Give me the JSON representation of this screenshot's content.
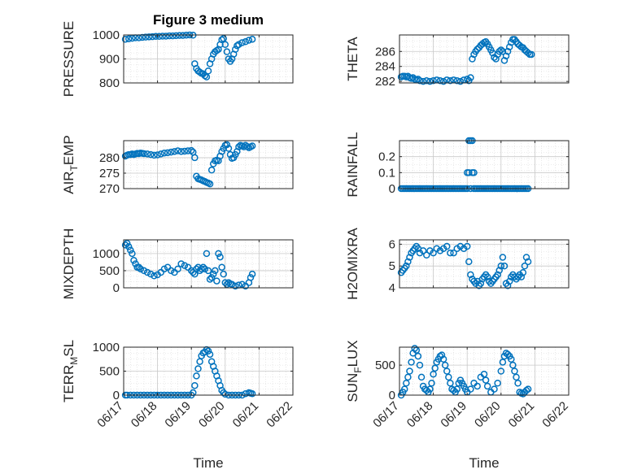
{
  "figure": {
    "title": "Figure 3 medium",
    "xlabel": "Time",
    "x_ticks": [
      "06/17",
      "06/18",
      "06/19",
      "06/20",
      "06/21",
      "06/22"
    ],
    "marker_color": "#0072BD"
  },
  "chart_data": [
    {
      "type": "scatter",
      "ylabel": "PRESSURE",
      "ylim": [
        800,
        1000
      ],
      "yticks": [
        800,
        900,
        1000
      ],
      "xlim": [
        0,
        5
      ],
      "grid": true,
      "x": [
        0.05,
        0.15,
        0.25,
        0.35,
        0.45,
        0.55,
        0.65,
        0.75,
        0.85,
        0.95,
        1.05,
        1.15,
        1.25,
        1.35,
        1.45,
        1.55,
        1.65,
        1.75,
        1.85,
        1.95,
        2.05,
        2.1,
        2.15,
        2.2,
        2.25,
        2.3,
        2.35,
        2.4,
        2.45,
        2.5,
        2.55,
        2.6,
        2.65,
        2.7,
        2.75,
        2.8,
        2.85,
        2.9,
        2.95,
        3.0,
        3.05,
        3.1,
        3.15,
        3.2,
        3.25,
        3.3,
        3.35,
        3.4,
        3.5,
        3.6,
        3.7,
        3.8
      ],
      "y": [
        982,
        984,
        986,
        988,
        988,
        990,
        991,
        992,
        993,
        994,
        994,
        995,
        995,
        996,
        996,
        997,
        998,
        998,
        999,
        1000,
        999,
        880,
        860,
        850,
        845,
        840,
        838,
        830,
        825,
        850,
        880,
        900,
        920,
        930,
        935,
        940,
        960,
        980,
        985,
        960,
        930,
        900,
        890,
        900,
        920,
        940,
        955,
        960,
        968,
        972,
        978,
        982
      ]
    },
    {
      "type": "scatter",
      "ylabel": "THETA",
      "ylim": [
        281.8,
        288.2
      ],
      "yticks": [
        282,
        284,
        286
      ],
      "xlim": [
        0,
        5
      ],
      "grid": true,
      "x": [
        0.05,
        0.1,
        0.15,
        0.2,
        0.25,
        0.3,
        0.35,
        0.4,
        0.45,
        0.5,
        0.55,
        0.6,
        0.7,
        0.8,
        0.9,
        1.0,
        1.1,
        1.2,
        1.3,
        1.4,
        1.5,
        1.6,
        1.7,
        1.8,
        1.9,
        2.0,
        2.05,
        2.1,
        2.15,
        2.2,
        2.25,
        2.3,
        2.35,
        2.4,
        2.45,
        2.5,
        2.55,
        2.6,
        2.65,
        2.7,
        2.75,
        2.8,
        2.85,
        2.9,
        2.95,
        3.0,
        3.05,
        3.1,
        3.15,
        3.2,
        3.25,
        3.3,
        3.35,
        3.4,
        3.45,
        3.5,
        3.55,
        3.6,
        3.65,
        3.7,
        3.75,
        3.8,
        3.85,
        3.9
      ],
      "y": [
        282.6,
        282.7,
        282.7,
        282.6,
        282.7,
        282.5,
        282.4,
        282.5,
        282.3,
        282.2,
        282.3,
        282.1,
        282.0,
        282.1,
        282.0,
        282.1,
        282.2,
        282.1,
        282.0,
        282.2,
        282.1,
        282.2,
        282.1,
        282.0,
        282.2,
        282.3,
        282.1,
        282.5,
        285.0,
        285.6,
        286.0,
        286.3,
        286.5,
        286.8,
        287.0,
        287.2,
        287.3,
        287.0,
        286.6,
        286.2,
        285.8,
        285.2,
        285.0,
        285.6,
        286.0,
        286.2,
        286.0,
        284.8,
        285.4,
        286.0,
        286.6,
        287.2,
        287.6,
        287.6,
        287.3,
        287.0,
        286.8,
        286.6,
        286.5,
        286.2,
        286.0,
        285.8,
        285.6,
        285.6
      ]
    },
    {
      "type": "scatter",
      "ylabel": "AIR_TEMP",
      "ylabel_main": "AIR",
      "ylabel_sub": "T",
      "ylabel_rest": "EMP",
      "ylim": [
        270,
        285.5
      ],
      "yticks": [
        270,
        275,
        280
      ],
      "xlim": [
        0,
        5
      ],
      "grid": true,
      "x": [
        0.05,
        0.1,
        0.15,
        0.2,
        0.25,
        0.3,
        0.35,
        0.4,
        0.45,
        0.5,
        0.55,
        0.6,
        0.7,
        0.8,
        0.9,
        1.0,
        1.1,
        1.2,
        1.3,
        1.4,
        1.5,
        1.6,
        1.7,
        1.8,
        1.9,
        2.0,
        2.05,
        2.1,
        2.15,
        2.2,
        2.25,
        2.3,
        2.35,
        2.4,
        2.45,
        2.5,
        2.55,
        2.6,
        2.65,
        2.7,
        2.75,
        2.8,
        2.85,
        2.9,
        2.95,
        3.0,
        3.05,
        3.1,
        3.15,
        3.2,
        3.25,
        3.3,
        3.35,
        3.4,
        3.45,
        3.5,
        3.55,
        3.6,
        3.65,
        3.7,
        3.75,
        3.8
      ],
      "y": [
        280.5,
        280.8,
        281.0,
        281.0,
        281.2,
        281.0,
        281.2,
        281.4,
        281.3,
        281.5,
        281.4,
        281.3,
        281.2,
        281.0,
        280.8,
        280.9,
        281.2,
        281.5,
        281.6,
        281.8,
        282.0,
        282.2,
        282.0,
        282.1,
        282.2,
        282.3,
        281.8,
        280.0,
        274.0,
        273.2,
        273.0,
        272.8,
        272.5,
        272.3,
        272.0,
        271.8,
        271.5,
        276.0,
        278.0,
        279.0,
        279.2,
        279.0,
        280.5,
        282.0,
        283.0,
        284.0,
        284.2,
        283.0,
        281.0,
        279.8,
        280.0,
        281.0,
        282.0,
        283.5,
        284.0,
        283.8,
        283.5,
        284.0,
        283.6,
        283.2,
        283.5,
        283.8
      ]
    },
    {
      "type": "scatter",
      "ylabel": "RAINFALL",
      "ylim": [
        0,
        0.3
      ],
      "yticks": [
        0,
        0.1,
        0.2
      ],
      "ytick_labels": [
        "0",
        "0.1",
        "0.2"
      ],
      "xlim": [
        0,
        5
      ],
      "grid": true,
      "x": [
        0.05,
        0.1,
        0.15,
        0.2,
        0.25,
        0.3,
        0.35,
        0.4,
        0.45,
        0.5,
        0.55,
        0.6,
        0.65,
        0.7,
        0.75,
        0.8,
        0.85,
        0.9,
        0.95,
        1.0,
        1.05,
        1.1,
        1.15,
        1.2,
        1.25,
        1.3,
        1.35,
        1.4,
        1.45,
        1.5,
        1.55,
        1.6,
        1.65,
        1.7,
        1.75,
        1.8,
        1.85,
        1.9,
        1.95,
        2.0,
        2.0,
        2.05,
        2.05,
        2.1,
        2.1,
        2.15,
        2.15,
        2.2,
        2.2,
        2.25,
        2.3,
        2.35,
        2.4,
        2.45,
        2.5,
        2.55,
        2.6,
        2.65,
        2.7,
        2.75,
        2.8,
        2.85,
        2.9,
        2.95,
        3.0,
        3.05,
        3.1,
        3.15,
        3.2,
        3.25,
        3.3,
        3.35,
        3.4,
        3.45,
        3.5,
        3.55,
        3.6,
        3.65,
        3.7,
        3.75,
        3.8
      ],
      "y": [
        0,
        0,
        0,
        0,
        0,
        0,
        0,
        0,
        0,
        0,
        0,
        0,
        0,
        0,
        0,
        0,
        0,
        0,
        0,
        0,
        0,
        0,
        0,
        0,
        0,
        0,
        0,
        0,
        0,
        0,
        0,
        0,
        0,
        0,
        0,
        0,
        0,
        0,
        0,
        0,
        0.1,
        0.3,
        0.1,
        0.3,
        0,
        0.3,
        0.1,
        0.1,
        0,
        0,
        0,
        0,
        0,
        0,
        0,
        0,
        0,
        0,
        0,
        0,
        0,
        0,
        0,
        0,
        0,
        0,
        0,
        0,
        0,
        0,
        0,
        0,
        0,
        0,
        0,
        0,
        0,
        0,
        0,
        0,
        0
      ]
    },
    {
      "type": "scatter",
      "ylabel": "MIXDEPTH",
      "ylim": [
        0,
        1400
      ],
      "yticks": [
        0,
        500,
        1000
      ],
      "xlim": [
        0,
        5
      ],
      "grid": true,
      "x": [
        0.05,
        0.1,
        0.15,
        0.2,
        0.25,
        0.3,
        0.35,
        0.4,
        0.45,
        0.5,
        0.6,
        0.7,
        0.8,
        0.9,
        1.0,
        1.1,
        1.2,
        1.3,
        1.4,
        1.5,
        1.6,
        1.7,
        1.8,
        1.9,
        2.0,
        2.05,
        2.1,
        2.15,
        2.2,
        2.25,
        2.3,
        2.35,
        2.4,
        2.45,
        2.5,
        2.55,
        2.6,
        2.65,
        2.7,
        2.75,
        2.8,
        2.85,
        2.9,
        2.95,
        3.0,
        3.05,
        3.1,
        3.15,
        3.2,
        3.3,
        3.4,
        3.5,
        3.6,
        3.7,
        3.75,
        3.8
      ],
      "y": [
        1250,
        1300,
        1200,
        1100,
        1000,
        800,
        700,
        600,
        600,
        550,
        500,
        450,
        400,
        350,
        380,
        450,
        550,
        600,
        500,
        450,
        550,
        700,
        650,
        600,
        500,
        450,
        400,
        550,
        600,
        500,
        550,
        600,
        550,
        1000,
        500,
        250,
        300,
        400,
        500,
        200,
        1000,
        900,
        600,
        400,
        150,
        100,
        150,
        120,
        100,
        50,
        80,
        100,
        50,
        150,
        300,
        400
      ]
    },
    {
      "type": "scatter",
      "ylabel": "H2OMIXRA",
      "ylim": [
        4,
        6.2
      ],
      "yticks": [
        4,
        5,
        6
      ],
      "xlim": [
        0,
        5
      ],
      "grid": true,
      "x": [
        0.05,
        0.1,
        0.15,
        0.2,
        0.25,
        0.3,
        0.35,
        0.4,
        0.45,
        0.5,
        0.55,
        0.6,
        0.7,
        0.8,
        0.9,
        1.0,
        1.1,
        1.2,
        1.3,
        1.4,
        1.5,
        1.6,
        1.7,
        1.8,
        1.9,
        2.0,
        2.05,
        2.1,
        2.15,
        2.2,
        2.25,
        2.3,
        2.35,
        2.4,
        2.45,
        2.5,
        2.55,
        2.6,
        2.65,
        2.7,
        2.75,
        2.8,
        2.85,
        2.9,
        2.95,
        3.0,
        3.05,
        3.1,
        3.15,
        3.2,
        3.25,
        3.3,
        3.35,
        3.4,
        3.45,
        3.5,
        3.55,
        3.6,
        3.65,
        3.7,
        3.75,
        3.8
      ],
      "y": [
        4.7,
        4.8,
        4.9,
        5.0,
        5.2,
        5.4,
        5.6,
        5.7,
        5.8,
        5.9,
        5.8,
        5.6,
        5.7,
        5.5,
        5.7,
        5.6,
        5.8,
        5.7,
        5.8,
        5.9,
        5.6,
        5.6,
        5.8,
        5.9,
        5.8,
        5.9,
        5.2,
        4.6,
        4.4,
        4.3,
        4.2,
        4.3,
        4.1,
        4.2,
        4.4,
        4.5,
        4.6,
        4.5,
        4.3,
        4.2,
        4.3,
        4.4,
        4.5,
        4.6,
        4.8,
        5.0,
        5.4,
        5.0,
        4.2,
        4.1,
        4.3,
        4.5,
        4.6,
        4.5,
        4.4,
        4.5,
        4.6,
        4.5,
        4.7,
        5.0,
        5.4,
        5.2
      ]
    },
    {
      "type": "scatter",
      "ylabel": "TERR_MSL",
      "ylabel_main": "TERR",
      "ylabel_sub": "M",
      "ylabel_rest": "SL",
      "ylim": [
        0,
        1000
      ],
      "yticks": [
        0,
        500,
        1000
      ],
      "xlim": [
        0,
        5
      ],
      "grid": true,
      "x": [
        0.05,
        0.1,
        0.2,
        0.3,
        0.4,
        0.5,
        0.6,
        0.7,
        0.8,
        0.9,
        1.0,
        1.1,
        1.2,
        1.3,
        1.4,
        1.5,
        1.6,
        1.7,
        1.8,
        1.9,
        2.0,
        2.05,
        2.1,
        2.15,
        2.2,
        2.25,
        2.3,
        2.35,
        2.4,
        2.45,
        2.5,
        2.55,
        2.6,
        2.65,
        2.7,
        2.75,
        2.8,
        2.85,
        2.9,
        2.95,
        3.0,
        3.1,
        3.2,
        3.3,
        3.4,
        3.5,
        3.6,
        3.7,
        3.75,
        3.8
      ],
      "y": [
        0,
        0,
        0,
        0,
        0,
        0,
        0,
        0,
        0,
        0,
        0,
        0,
        0,
        0,
        0,
        0,
        0,
        0,
        0,
        0,
        0,
        50,
        200,
        400,
        550,
        700,
        820,
        880,
        900,
        950,
        920,
        850,
        700,
        600,
        500,
        400,
        300,
        200,
        100,
        50,
        20,
        0,
        0,
        0,
        0,
        0,
        30,
        50,
        40,
        30
      ]
    },
    {
      "type": "scatter",
      "ylabel": "SUN_FLUX",
      "ylabel_main": "SUN",
      "ylabel_sub": "F",
      "ylabel_rest": "LUX",
      "ylim": [
        0,
        800
      ],
      "yticks": [
        0,
        500
      ],
      "xlim": [
        0,
        5
      ],
      "grid": true,
      "x": [
        0.05,
        0.1,
        0.15,
        0.2,
        0.25,
        0.3,
        0.35,
        0.4,
        0.45,
        0.5,
        0.55,
        0.6,
        0.65,
        0.7,
        0.75,
        0.8,
        0.85,
        0.9,
        0.95,
        1.0,
        1.05,
        1.1,
        1.15,
        1.2,
        1.25,
        1.3,
        1.35,
        1.4,
        1.45,
        1.5,
        1.55,
        1.6,
        1.65,
        1.7,
        1.75,
        1.8,
        1.85,
        1.9,
        1.95,
        2.0,
        2.1,
        2.2,
        2.3,
        2.4,
        2.5,
        2.55,
        2.6,
        2.7,
        2.8,
        2.9,
        3.0,
        3.05,
        3.1,
        3.15,
        3.2,
        3.25,
        3.3,
        3.35,
        3.4,
        3.45,
        3.5,
        3.55,
        3.6,
        3.65,
        3.7,
        3.75,
        3.8
      ],
      "y": [
        0,
        50,
        100,
        200,
        300,
        400,
        550,
        700,
        780,
        750,
        650,
        500,
        300,
        150,
        100,
        80,
        50,
        100,
        200,
        350,
        450,
        550,
        600,
        650,
        670,
        600,
        500,
        400,
        300,
        200,
        100,
        80,
        50,
        100,
        200,
        250,
        200,
        150,
        100,
        50,
        100,
        200,
        150,
        300,
        350,
        250,
        150,
        50,
        100,
        200,
        400,
        550,
        650,
        700,
        680,
        650,
        600,
        500,
        400,
        300,
        200,
        50,
        30,
        20,
        50,
        80,
        100
      ]
    }
  ]
}
